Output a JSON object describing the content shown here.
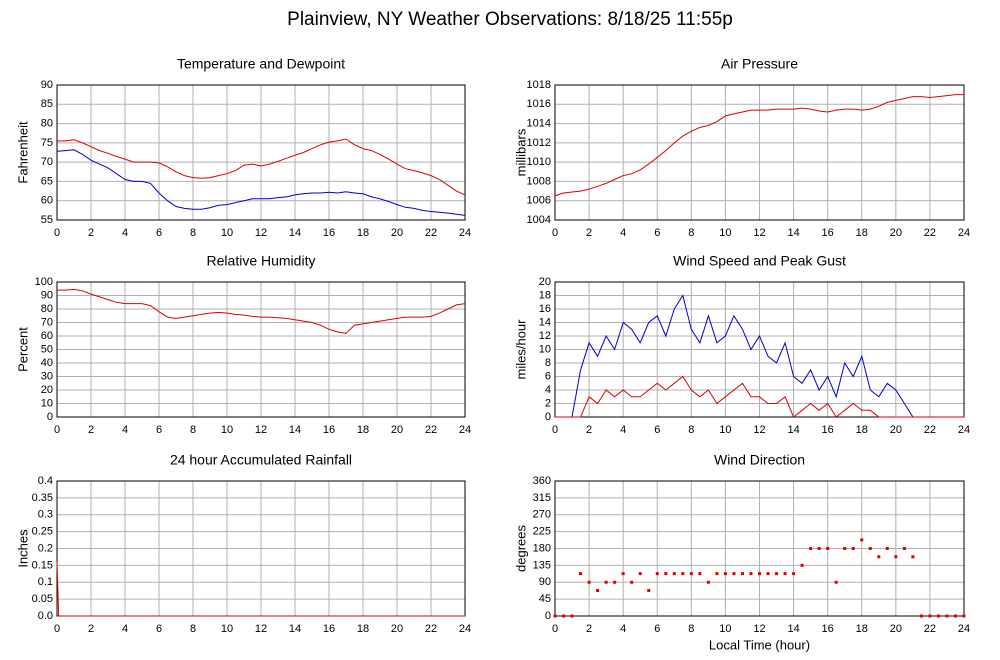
{
  "title": "Plainview, NY Weather Observations: 8/18/25 11:55p",
  "chart_data": [
    {
      "type": "line",
      "title": "Temperature and Dewpoint",
      "ylabel": "Fahrenheit",
      "x": [
        0,
        0.5,
        1,
        1.5,
        2,
        2.5,
        3,
        3.5,
        4,
        4.5,
        5,
        5.5,
        6,
        6.5,
        7,
        7.5,
        8,
        8.5,
        9,
        9.5,
        10,
        10.5,
        11,
        11.5,
        12,
        12.5,
        13,
        13.5,
        14,
        14.5,
        15,
        15.5,
        16,
        16.5,
        17,
        17.5,
        18,
        18.5,
        19,
        19.5,
        20,
        20.5,
        21,
        21.5,
        22,
        22.5,
        23,
        23.5,
        24
      ],
      "series": [
        {
          "name": "Temperature",
          "color": "#e00000",
          "values": [
            75.5,
            75.5,
            75.8,
            75,
            74,
            73,
            72.3,
            71.5,
            70.8,
            70,
            70,
            70,
            69.8,
            68.8,
            67.5,
            66.5,
            66,
            65.8,
            66,
            66.5,
            67,
            67.8,
            69.2,
            69.5,
            69,
            69.5,
            70.2,
            71,
            71.8,
            72.5,
            73.5,
            74.5,
            75.2,
            75.5,
            76,
            74.5,
            73.5,
            73,
            72,
            70.8,
            69.5,
            68.3,
            67.8,
            67.2,
            66.5,
            65.5,
            64,
            62.5,
            61.5
          ]
        },
        {
          "name": "Dewpoint",
          "color": "#0000d0",
          "values": [
            72.8,
            73,
            73.2,
            72,
            70.5,
            69.5,
            68.5,
            67,
            65.5,
            65,
            65,
            64.5,
            62,
            60,
            58.5,
            58,
            57.8,
            57.8,
            58.2,
            58.8,
            59,
            59.5,
            60,
            60.5,
            60.5,
            60.5,
            60.8,
            61,
            61.5,
            61.8,
            62,
            62,
            62.2,
            62,
            62.3,
            62,
            61.8,
            61,
            60.5,
            59.8,
            59,
            58.3,
            58,
            57.5,
            57.2,
            57,
            56.8,
            56.5,
            56.2
          ]
        }
      ],
      "xlim": [
        0,
        24
      ],
      "xticks": [
        0,
        2,
        4,
        6,
        8,
        10,
        12,
        14,
        16,
        18,
        20,
        22,
        24
      ],
      "ylim": [
        55,
        90
      ],
      "yticks": [
        55,
        60,
        65,
        70,
        75,
        80,
        85,
        90
      ],
      "grid": true
    },
    {
      "type": "line",
      "title": "Air Pressure",
      "ylabel": "millibars",
      "x": [
        0,
        0.5,
        1,
        1.5,
        2,
        2.5,
        3,
        3.5,
        4,
        4.5,
        5,
        5.5,
        6,
        6.5,
        7,
        7.5,
        8,
        8.5,
        9,
        9.5,
        10,
        10.5,
        11,
        11.5,
        12,
        12.5,
        13,
        13.5,
        14,
        14.5,
        15,
        15.5,
        16,
        16.5,
        17,
        17.5,
        18,
        18.5,
        19,
        19.5,
        20,
        20.5,
        21,
        21.5,
        22,
        22.5,
        23,
        23.5,
        24
      ],
      "series": [
        {
          "name": "Pressure",
          "color": "#e00000",
          "values": [
            1006.5,
            1006.8,
            1006.9,
            1007,
            1007.2,
            1007.5,
            1007.8,
            1008.2,
            1008.6,
            1008.8,
            1009.2,
            1009.8,
            1010.5,
            1011.2,
            1012,
            1012.7,
            1013.2,
            1013.6,
            1013.8,
            1014.2,
            1014.8,
            1015,
            1015.2,
            1015.4,
            1015.4,
            1015.4,
            1015.5,
            1015.5,
            1015.5,
            1015.6,
            1015.5,
            1015.3,
            1015.2,
            1015.4,
            1015.5,
            1015.5,
            1015.4,
            1015.5,
            1015.8,
            1016.2,
            1016.4,
            1016.6,
            1016.8,
            1016.8,
            1016.7,
            1016.8,
            1016.9,
            1017,
            1017
          ]
        }
      ],
      "xlim": [
        0,
        24
      ],
      "xticks": [
        0,
        2,
        4,
        6,
        8,
        10,
        12,
        14,
        16,
        18,
        20,
        22,
        24
      ],
      "ylim": [
        1004,
        1018
      ],
      "yticks": [
        1004,
        1006,
        1008,
        1010,
        1012,
        1014,
        1016,
        1018
      ],
      "grid": true
    },
    {
      "type": "line",
      "title": "Relative Humidity",
      "ylabel": "Percent",
      "x": [
        0,
        0.5,
        1,
        1.5,
        2,
        2.5,
        3,
        3.5,
        4,
        4.5,
        5,
        5.5,
        6,
        6.5,
        7,
        7.5,
        8,
        8.5,
        9,
        9.5,
        10,
        10.5,
        11,
        11.5,
        12,
        12.5,
        13,
        13.5,
        14,
        14.5,
        15,
        15.5,
        16,
        16.5,
        17,
        17.5,
        18,
        18.5,
        19,
        19.5,
        20,
        20.5,
        21,
        21.5,
        22,
        22.5,
        23,
        23.5,
        24
      ],
      "series": [
        {
          "name": "Humidity",
          "color": "#e00000",
          "values": [
            94,
            94,
            94.5,
            93.5,
            91,
            89,
            87,
            85,
            84,
            84,
            84,
            82.5,
            78,
            74,
            73,
            74,
            75,
            76,
            77,
            77.5,
            77,
            76,
            75.5,
            74.5,
            74,
            74,
            73.5,
            73,
            72,
            71,
            70,
            68,
            65,
            63,
            62,
            68,
            69,
            70,
            71,
            72,
            73,
            74,
            74,
            74,
            74.5,
            77,
            80,
            83,
            84
          ]
        }
      ],
      "xlim": [
        0,
        24
      ],
      "xticks": [
        0,
        2,
        4,
        6,
        8,
        10,
        12,
        14,
        16,
        18,
        20,
        22,
        24
      ],
      "ylim": [
        0,
        100
      ],
      "yticks": [
        0,
        10,
        20,
        30,
        40,
        50,
        60,
        70,
        80,
        90,
        100
      ],
      "grid": true
    },
    {
      "type": "line",
      "title": "Wind Speed and Peak Gust",
      "ylabel": "miles/hour",
      "x": [
        0,
        0.5,
        1,
        1.5,
        2,
        2.5,
        3,
        3.5,
        4,
        4.5,
        5,
        5.5,
        6,
        6.5,
        7,
        7.5,
        8,
        8.5,
        9,
        9.5,
        10,
        10.5,
        11,
        11.5,
        12,
        12.5,
        13,
        13.5,
        14,
        14.5,
        15,
        15.5,
        16,
        16.5,
        17,
        17.5,
        18,
        18.5,
        19,
        19.5,
        20,
        20.5,
        21,
        21.5,
        22,
        22.5,
        23,
        23.5,
        24
      ],
      "series": [
        {
          "name": "Wind Speed",
          "color": "#0000d0",
          "values": [
            0,
            0,
            0,
            7,
            11,
            9,
            12,
            10,
            14,
            13,
            11,
            14,
            15,
            12,
            16,
            18,
            13,
            11,
            15,
            11,
            12,
            15,
            13,
            10,
            12,
            9,
            8,
            11,
            6,
            5,
            7,
            4,
            6,
            3,
            8,
            6,
            9,
            4,
            3,
            5,
            4,
            2,
            0,
            0,
            0,
            0,
            0,
            0,
            0
          ]
        },
        {
          "name": "Peak Gust",
          "color": "#e00000",
          "values": [
            0,
            0,
            0,
            0,
            3,
            2,
            4,
            3,
            4,
            3,
            3,
            4,
            5,
            4,
            5,
            6,
            4,
            3,
            4,
            2,
            3,
            4,
            5,
            3,
            3,
            2,
            2,
            3,
            0,
            1,
            2,
            1,
            2,
            0,
            1,
            2,
            1,
            1,
            0,
            0,
            0,
            0,
            0,
            0,
            0,
            0,
            0,
            0,
            0
          ]
        }
      ],
      "xlim": [
        0,
        24
      ],
      "xticks": [
        0,
        2,
        4,
        6,
        8,
        10,
        12,
        14,
        16,
        18,
        20,
        22,
        24
      ],
      "ylim": [
        0,
        20
      ],
      "yticks": [
        0,
        2,
        4,
        6,
        8,
        10,
        12,
        14,
        16,
        18,
        20
      ],
      "grid": true
    },
    {
      "type": "line",
      "title": "24 hour Accumulated Rainfall",
      "ylabel": "Inches",
      "x": [
        0,
        0.1,
        24
      ],
      "series": [
        {
          "name": "Rainfall",
          "color": "#e00000",
          "values": [
            0.16,
            0,
            0
          ]
        }
      ],
      "xlim": [
        0,
        24
      ],
      "xticks": [
        0,
        2,
        4,
        6,
        8,
        10,
        12,
        14,
        16,
        18,
        20,
        22,
        24
      ],
      "ylim": [
        0,
        0.4
      ],
      "yticks": [
        {
          "value": 0,
          "label": "0.0"
        },
        0.05,
        0.1,
        0.15,
        0.2,
        0.25,
        0.3,
        0.35,
        0.4
      ],
      "grid": true
    },
    {
      "type": "scatter",
      "title": "Wind Direction",
      "ylabel": "degrees",
      "xlabel": "Local Time (hour)",
      "x": [
        0,
        0.5,
        1,
        1.5,
        2,
        2.5,
        3,
        3.5,
        4,
        4.5,
        5,
        5.5,
        6,
        6.5,
        7,
        7.5,
        8,
        8.5,
        9,
        9.5,
        10,
        10.5,
        11,
        11.5,
        12,
        12.5,
        13,
        13.5,
        14,
        14.5,
        15,
        15.5,
        16,
        16.5,
        17,
        17.5,
        18,
        18.5,
        19,
        19.5,
        20,
        20.5,
        21,
        21.5,
        22,
        22.5,
        23,
        23.5,
        24
      ],
      "series": [
        {
          "name": "Direction",
          "color": "#e00000",
          "values": [
            0,
            0,
            0,
            113,
            90,
            68,
            90,
            90,
            113,
            90,
            113,
            68,
            113,
            113,
            113,
            113,
            113,
            113,
            90,
            113,
            113,
            113,
            113,
            113,
            113,
            113,
            113,
            113,
            113,
            135,
            180,
            180,
            180,
            90,
            180,
            180,
            203,
            180,
            158,
            180,
            158,
            180,
            158,
            0,
            0,
            0,
            0,
            0,
            0
          ]
        }
      ],
      "xlim": [
        0,
        24
      ],
      "xticks": [
        0,
        2,
        4,
        6,
        8,
        10,
        12,
        14,
        16,
        18,
        20,
        22,
        24
      ],
      "ylim": [
        0,
        360
      ],
      "yticks": [
        0,
        45,
        90,
        135,
        180,
        225,
        270,
        315,
        360
      ],
      "grid": true
    }
  ]
}
